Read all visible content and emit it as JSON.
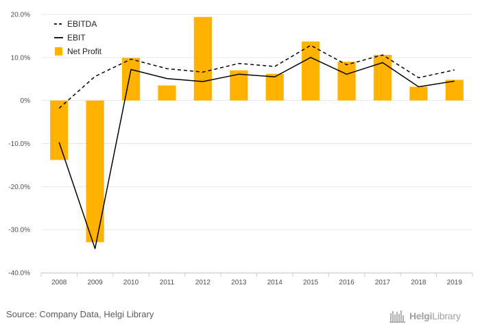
{
  "chart_data": {
    "type": "bar+line",
    "categories": [
      "2008",
      "2009",
      "2010",
      "2011",
      "2012",
      "2013",
      "2014",
      "2015",
      "2016",
      "2017",
      "2018",
      "2019"
    ],
    "series": [
      {
        "name": "EBITDA",
        "kind": "line",
        "style": "dashed",
        "color": "#000000",
        "values": [
          -1.8,
          5.6,
          9.6,
          7.4,
          6.6,
          8.6,
          7.9,
          12.8,
          8.3,
          10.6,
          5.3,
          7.1
        ]
      },
      {
        "name": "EBIT",
        "kind": "line",
        "style": "solid",
        "color": "#000000",
        "values": [
          -9.7,
          -34.4,
          7.2,
          5.1,
          4.4,
          6.1,
          5.5,
          10.0,
          6.1,
          8.8,
          3.2,
          4.5
        ]
      },
      {
        "name": "Net Profit",
        "kind": "bar",
        "color": "#FFB300",
        "values": [
          -13.8,
          -32.9,
          9.9,
          3.5,
          19.4,
          7.0,
          6.2,
          13.7,
          9.0,
          10.6,
          3.2,
          4.8
        ]
      }
    ],
    "yticks": [
      "20.0%",
      "10.0%",
      "0%",
      "-10.0%",
      "-20.0%",
      "-30.0%",
      "-40.0%"
    ],
    "ylim": [
      -40,
      20
    ],
    "grid": true,
    "legend": "top-left"
  },
  "footer": {
    "source": "Source: Company Data, Helgi Library",
    "brand_prefix": "Helgi",
    "brand_suffix": "Library"
  }
}
